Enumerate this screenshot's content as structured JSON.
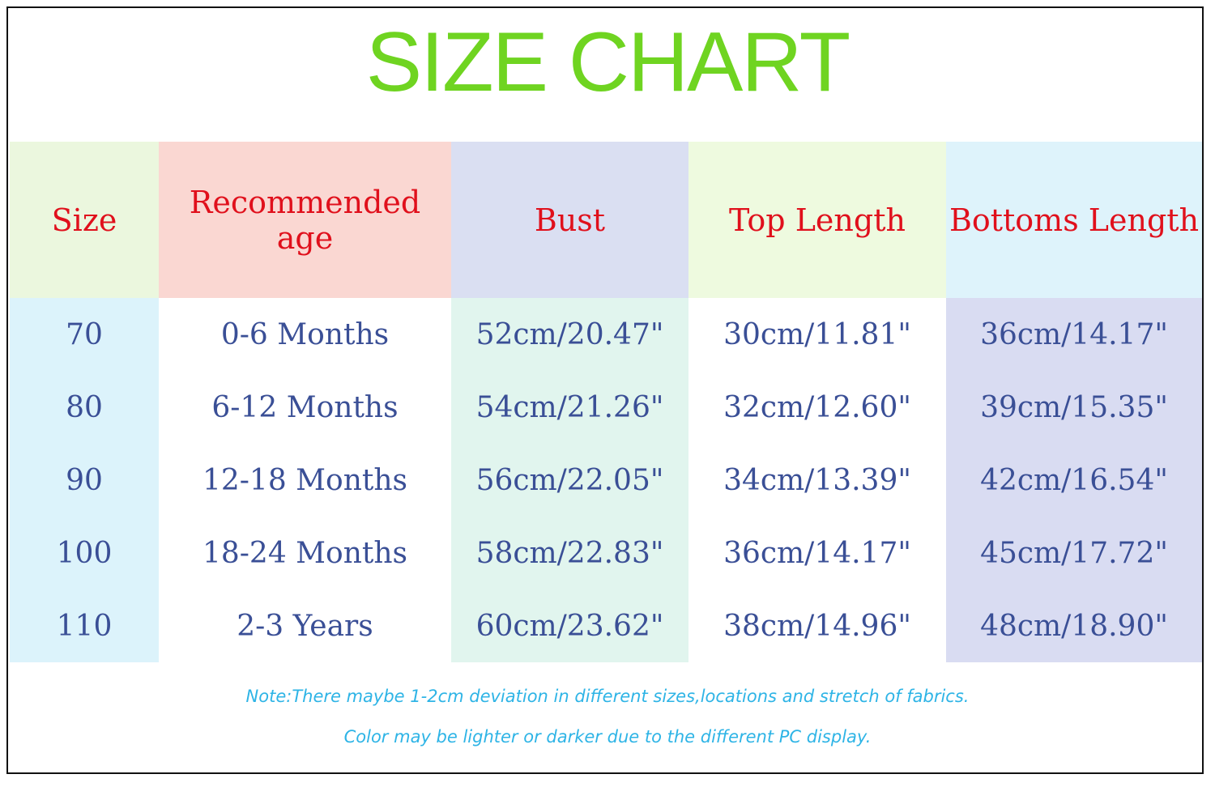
{
  "title": "SIZE CHART",
  "headers": [
    "Size",
    "Recommended age",
    "Bust",
    "Top Length",
    "Bottoms Length"
  ],
  "rows": [
    [
      "70",
      "0-6 Months",
      "52cm/20.47\"",
      "30cm/11.81\"",
      "36cm/14.17\""
    ],
    [
      "80",
      "6-12 Months",
      "54cm/21.26\"",
      "32cm/12.60\"",
      "39cm/15.35\""
    ],
    [
      "90",
      "12-18 Months",
      "56cm/22.05\"",
      "34cm/13.39\"",
      "42cm/16.54\""
    ],
    [
      "100",
      "18-24 Months",
      "58cm/22.83\"",
      "36cm/14.17\"",
      "45cm/17.72\""
    ],
    [
      "110",
      "2-3 Years",
      "60cm/23.62\"",
      "38cm/14.96\"",
      "48cm/18.90\""
    ]
  ],
  "notes": [
    "Note:There maybe 1-2cm deviation in different sizes,locations and stretch of fabrics.",
    "Color may be lighter or darker due to the different PC display."
  ],
  "colors": {
    "title": "#6fd421",
    "header_text": "#e0101c",
    "cell_text": "#3a4f96",
    "note_text": "#2eb4e6"
  }
}
